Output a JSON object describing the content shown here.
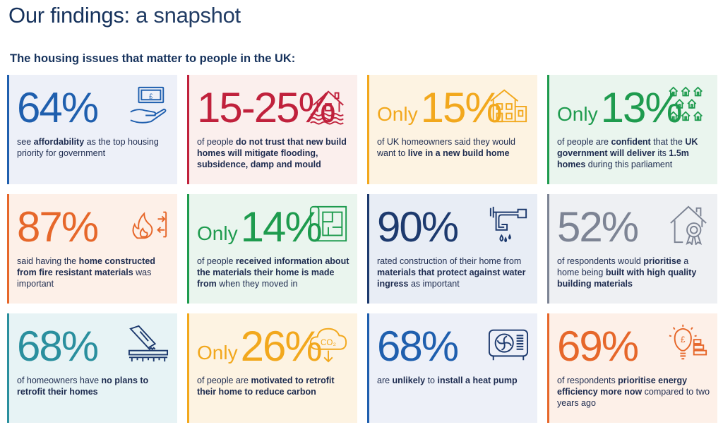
{
  "header": {
    "title_bold": "Our findings:",
    "title_light": " a snapshot",
    "subtitle": "The housing issues that matter to people in the UK:"
  },
  "cards": [
    {
      "only": "",
      "stat": "64%",
      "icon": "money-hand-icon",
      "color": "#1f5fae",
      "desc": [
        {
          "t": "see ",
          "b": false
        },
        {
          "t": "affordability",
          "b": true
        },
        {
          "t": " as the top housing priority for government",
          "b": false
        }
      ]
    },
    {
      "only": "",
      "stat": "15-25%",
      "icon": "flooded-house-icon",
      "color": "#c0213c",
      "desc": [
        {
          "t": "of people ",
          "b": false
        },
        {
          "t": "do not trust that new build homes will mitigate flooding, subsidence, damp and mould",
          "b": true
        }
      ]
    },
    {
      "only": "Only",
      "stat": "15%",
      "icon": "new-build-house-icon",
      "color": "#f2a81d",
      "desc": [
        {
          "t": "of UK homeowners said they would want to ",
          "b": false
        },
        {
          "t": "live in a new build home",
          "b": true
        }
      ]
    },
    {
      "only": "Only",
      "stat": "13%",
      "icon": "housing-estate-icon",
      "color": "#1e9b4e",
      "desc": [
        {
          "t": "of people are ",
          "b": false
        },
        {
          "t": "confident",
          "b": true
        },
        {
          "t": " that the ",
          "b": false
        },
        {
          "t": "UK government will deliver",
          "b": true
        },
        {
          "t": " its ",
          "b": false
        },
        {
          "t": "1.5m homes",
          "b": true
        },
        {
          "t": " during this parliament",
          "b": false
        }
      ]
    },
    {
      "only": "",
      "stat": "87%",
      "icon": "fire-resistant-icon",
      "color": "#e6672a",
      "desc": [
        {
          "t": "said having the ",
          "b": false
        },
        {
          "t": "home constructed from fire resistant materials",
          "b": true
        },
        {
          "t": " was important",
          "b": false
        }
      ]
    },
    {
      "only": "Only",
      "stat": "14%",
      "icon": "blueprint-icon",
      "color": "#1e9b4e",
      "desc": [
        {
          "t": "of people ",
          "b": false
        },
        {
          "t": "received information about the materials their home is made from",
          "b": true
        },
        {
          "t": " when they moved in",
          "b": false
        }
      ]
    },
    {
      "only": "",
      "stat": "90%",
      "icon": "leaking-pipe-icon",
      "color": "#1d3a6e",
      "desc": [
        {
          "t": "rated construction of their home from ",
          "b": false
        },
        {
          "t": "materials that protect against water ingress",
          "b": true
        },
        {
          "t": " as important",
          "b": false
        }
      ]
    },
    {
      "only": "",
      "stat": "52%",
      "icon": "quality-house-icon",
      "color": "#7d8494",
      "desc": [
        {
          "t": "of respondents would ",
          "b": false
        },
        {
          "t": "prioritise",
          "b": true
        },
        {
          "t": " a home being ",
          "b": false
        },
        {
          "t": "built with high quality building materials",
          "b": true
        }
      ]
    },
    {
      "only": "",
      "stat": "68%",
      "icon": "saw-plank-icon",
      "color": "#2a8f9e",
      "desc": [
        {
          "t": "of homeowners have ",
          "b": false
        },
        {
          "t": "no plans to retrofit their homes",
          "b": true
        }
      ]
    },
    {
      "only": "Only",
      "stat": "26%",
      "icon": "co2-cloud-icon",
      "color": "#f2a81d",
      "desc": [
        {
          "t": "of people are ",
          "b": false
        },
        {
          "t": "motivated to retrofit their home to reduce carbon",
          "b": true
        }
      ]
    },
    {
      "only": "",
      "stat": "68%",
      "icon": "heat-pump-icon",
      "color": "#1f5fae",
      "desc": [
        {
          "t": "are ",
          "b": false
        },
        {
          "t": "unlikely",
          "b": true
        },
        {
          "t": " to ",
          "b": false
        },
        {
          "t": "install a heat pump",
          "b": true
        }
      ]
    },
    {
      "only": "",
      "stat": "69%",
      "icon": "energy-bulb-icon",
      "color": "#e6672a",
      "desc": [
        {
          "t": "of respondents ",
          "b": false
        },
        {
          "t": "prioritise energy efficiency more now",
          "b": true
        },
        {
          "t": " compared to two years ago",
          "b": false
        }
      ]
    }
  ]
}
